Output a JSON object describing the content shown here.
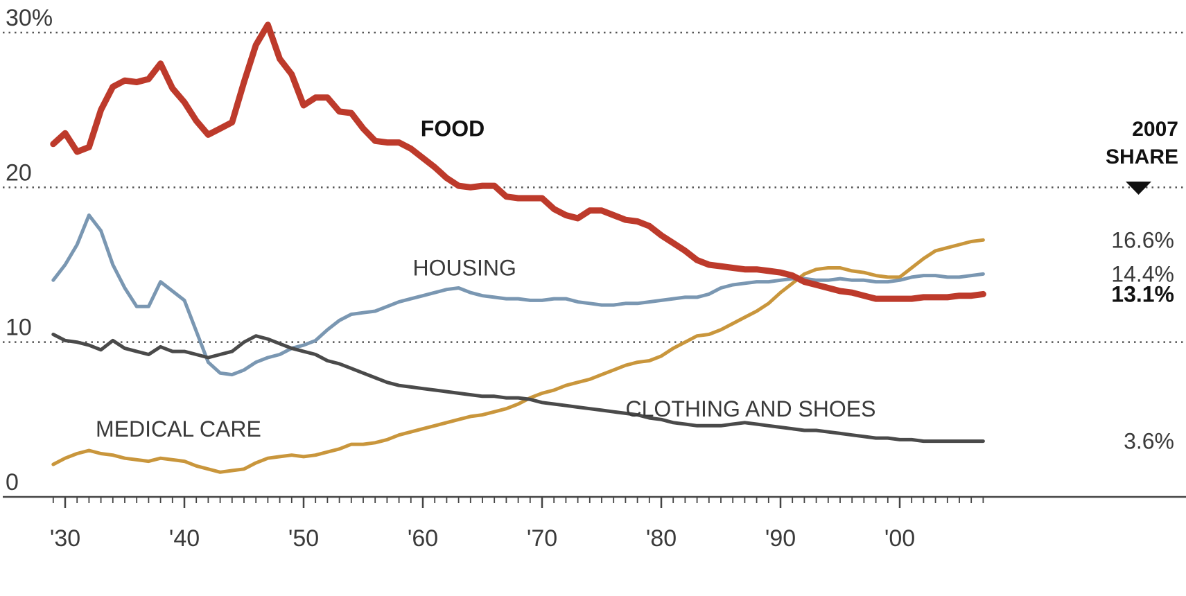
{
  "chart_data": {
    "type": "line",
    "xlim": [
      1928,
      2009
    ],
    "ylim": [
      0,
      30
    ],
    "grid": "dotted horizontal",
    "y_ticks": [
      {
        "value": 30,
        "label": "30%"
      },
      {
        "value": 20,
        "label": "20"
      },
      {
        "value": 10,
        "label": "10"
      },
      {
        "value": 0,
        "label": "0"
      }
    ],
    "x_ticks": [
      {
        "value": 1930,
        "label": "'30"
      },
      {
        "value": 1940,
        "label": "'40"
      },
      {
        "value": 1950,
        "label": "'50"
      },
      {
        "value": 1960,
        "label": "'60"
      },
      {
        "value": 1970,
        "label": "'70"
      },
      {
        "value": 1980,
        "label": "'80"
      },
      {
        "value": 1990,
        "label": "'90"
      },
      {
        "value": 2000,
        "label": "'00"
      }
    ],
    "header": {
      "line1": "2007",
      "line2": "SHARE"
    },
    "series": [
      {
        "name": "MEDICAL CARE",
        "color": "#c9963c",
        "end_label": "16.6%",
        "x": [
          1929,
          1930,
          1931,
          1932,
          1933,
          1934,
          1935,
          1936,
          1937,
          1938,
          1939,
          1940,
          1941,
          1942,
          1943,
          1944,
          1945,
          1946,
          1947,
          1948,
          1949,
          1950,
          1951,
          1952,
          1953,
          1954,
          1955,
          1956,
          1957,
          1958,
          1959,
          1960,
          1961,
          1962,
          1963,
          1964,
          1965,
          1966,
          1967,
          1968,
          1969,
          1970,
          1971,
          1972,
          1973,
          1974,
          1975,
          1976,
          1977,
          1978,
          1979,
          1980,
          1981,
          1982,
          1983,
          1984,
          1985,
          1986,
          1987,
          1988,
          1989,
          1990,
          1991,
          1992,
          1993,
          1994,
          1995,
          1996,
          1997,
          1998,
          1999,
          2000,
          2001,
          2002,
          2003,
          2004,
          2005,
          2006,
          2007
        ],
        "values": [
          2.1,
          2.5,
          2.8,
          3.0,
          2.8,
          2.7,
          2.5,
          2.4,
          2.3,
          2.5,
          2.4,
          2.3,
          2.0,
          1.8,
          1.6,
          1.7,
          1.8,
          2.2,
          2.5,
          2.6,
          2.7,
          2.6,
          2.7,
          2.9,
          3.1,
          3.4,
          3.4,
          3.5,
          3.7,
          4.0,
          4.2,
          4.4,
          4.6,
          4.8,
          5.0,
          5.2,
          5.3,
          5.5,
          5.7,
          6.0,
          6.4,
          6.7,
          6.9,
          7.2,
          7.4,
          7.6,
          7.9,
          8.2,
          8.5,
          8.7,
          8.8,
          9.1,
          9.6,
          10.0,
          10.4,
          10.5,
          10.8,
          11.2,
          11.6,
          12.0,
          12.5,
          13.2,
          13.8,
          14.4,
          14.7,
          14.8,
          14.8,
          14.6,
          14.5,
          14.3,
          14.2,
          14.2,
          14.8,
          15.4,
          15.9,
          16.1,
          16.3,
          16.5,
          16.6
        ]
      },
      {
        "name": "HOUSING",
        "color": "#7a97b2",
        "end_label": "14.4%",
        "x": [
          1929,
          1930,
          1931,
          1932,
          1933,
          1934,
          1935,
          1936,
          1937,
          1938,
          1939,
          1940,
          1941,
          1942,
          1943,
          1944,
          1945,
          1946,
          1947,
          1948,
          1949,
          1950,
          1951,
          1952,
          1953,
          1954,
          1955,
          1956,
          1957,
          1958,
          1959,
          1960,
          1961,
          1962,
          1963,
          1964,
          1965,
          1966,
          1967,
          1968,
          1969,
          1970,
          1971,
          1972,
          1973,
          1974,
          1975,
          1976,
          1977,
          1978,
          1979,
          1980,
          1981,
          1982,
          1983,
          1984,
          1985,
          1986,
          1987,
          1988,
          1989,
          1990,
          1991,
          1992,
          1993,
          1994,
          1995,
          1996,
          1997,
          1998,
          1999,
          2000,
          2001,
          2002,
          2003,
          2004,
          2005,
          2006,
          2007
        ],
        "values": [
          14.0,
          15.0,
          16.3,
          18.2,
          17.2,
          15.0,
          13.5,
          12.3,
          12.3,
          13.9,
          13.3,
          12.7,
          10.7,
          8.7,
          8.0,
          7.9,
          8.2,
          8.7,
          9.0,
          9.2,
          9.6,
          9.8,
          10.1,
          10.8,
          11.4,
          11.8,
          11.9,
          12.0,
          12.3,
          12.6,
          12.8,
          13.0,
          13.2,
          13.4,
          13.5,
          13.2,
          13.0,
          12.9,
          12.8,
          12.8,
          12.7,
          12.7,
          12.8,
          12.8,
          12.6,
          12.5,
          12.4,
          12.4,
          12.5,
          12.5,
          12.6,
          12.7,
          12.8,
          12.9,
          12.9,
          13.1,
          13.5,
          13.7,
          13.8,
          13.9,
          13.9,
          14.0,
          14.1,
          14.1,
          14.0,
          14.0,
          14.1,
          14.0,
          14.0,
          13.9,
          13.9,
          14.0,
          14.2,
          14.3,
          14.3,
          14.2,
          14.2,
          14.3,
          14.4
        ]
      },
      {
        "name": "FOOD",
        "color": "#bd3a2b",
        "end_label": "13.1%",
        "x": [
          1929,
          1930,
          1931,
          1932,
          1933,
          1934,
          1935,
          1936,
          1937,
          1938,
          1939,
          1940,
          1941,
          1942,
          1943,
          1944,
          1945,
          1946,
          1947,
          1948,
          1949,
          1950,
          1951,
          1952,
          1953,
          1954,
          1955,
          1956,
          1957,
          1958,
          1959,
          1960,
          1961,
          1962,
          1963,
          1964,
          1965,
          1966,
          1967,
          1968,
          1969,
          1970,
          1971,
          1972,
          1973,
          1974,
          1975,
          1976,
          1977,
          1978,
          1979,
          1980,
          1981,
          1982,
          1983,
          1984,
          1985,
          1986,
          1987,
          1988,
          1989,
          1990,
          1991,
          1992,
          1993,
          1994,
          1995,
          1996,
          1997,
          1998,
          1999,
          2000,
          2001,
          2002,
          2003,
          2004,
          2005,
          2006,
          2007
        ],
        "values": [
          22.8,
          23.5,
          22.3,
          22.6,
          25.0,
          26.5,
          26.9,
          26.8,
          27.0,
          28.0,
          26.4,
          25.5,
          24.3,
          23.4,
          23.8,
          24.2,
          26.8,
          29.2,
          30.5,
          28.3,
          27.3,
          25.3,
          25.8,
          25.8,
          24.9,
          24.8,
          23.8,
          23.0,
          22.9,
          22.9,
          22.5,
          21.9,
          21.3,
          20.6,
          20.1,
          20.0,
          20.1,
          20.1,
          19.4,
          19.3,
          19.3,
          19.3,
          18.6,
          18.2,
          18.0,
          18.5,
          18.5,
          18.2,
          17.9,
          17.8,
          17.5,
          16.9,
          16.4,
          15.9,
          15.3,
          15.0,
          14.9,
          14.8,
          14.7,
          14.7,
          14.6,
          14.5,
          14.3,
          13.9,
          13.7,
          13.5,
          13.3,
          13.2,
          13.0,
          12.8,
          12.8,
          12.8,
          12.8,
          12.9,
          12.9,
          12.9,
          13.0,
          13.0,
          13.1
        ]
      },
      {
        "name": "CLOTHING AND SHOES",
        "color": "#4a4a4a",
        "end_label": "3.6%",
        "x": [
          1929,
          1930,
          1931,
          1932,
          1933,
          1934,
          1935,
          1936,
          1937,
          1938,
          1939,
          1940,
          1941,
          1942,
          1943,
          1944,
          1945,
          1946,
          1947,
          1948,
          1949,
          1950,
          1951,
          1952,
          1953,
          1954,
          1955,
          1956,
          1957,
          1958,
          1959,
          1960,
          1961,
          1962,
          1963,
          1964,
          1965,
          1966,
          1967,
          1968,
          1969,
          1970,
          1971,
          1972,
          1973,
          1974,
          1975,
          1976,
          1977,
          1978,
          1979,
          1980,
          1981,
          1982,
          1983,
          1984,
          1985,
          1986,
          1987,
          1988,
          1989,
          1990,
          1991,
          1992,
          1993,
          1994,
          1995,
          1996,
          1997,
          1998,
          1999,
          2000,
          2001,
          2002,
          2003,
          2004,
          2005,
          2006,
          2007
        ],
        "values": [
          10.5,
          10.1,
          10.0,
          9.8,
          9.5,
          10.1,
          9.6,
          9.4,
          9.2,
          9.7,
          9.4,
          9.4,
          9.2,
          9.0,
          9.2,
          9.4,
          10.0,
          10.4,
          10.2,
          9.9,
          9.6,
          9.4,
          9.2,
          8.8,
          8.6,
          8.3,
          8.0,
          7.7,
          7.4,
          7.2,
          7.1,
          7.0,
          6.9,
          6.8,
          6.7,
          6.6,
          6.5,
          6.5,
          6.4,
          6.4,
          6.3,
          6.1,
          6.0,
          5.9,
          5.8,
          5.7,
          5.6,
          5.5,
          5.4,
          5.3,
          5.1,
          5.0,
          4.8,
          4.7,
          4.6,
          4.6,
          4.6,
          4.7,
          4.8,
          4.7,
          4.6,
          4.5,
          4.4,
          4.3,
          4.3,
          4.2,
          4.1,
          4.0,
          3.9,
          3.8,
          3.8,
          3.7,
          3.7,
          3.6,
          3.6,
          3.6,
          3.6,
          3.6,
          3.6
        ]
      }
    ],
    "annotations": [
      {
        "text": "FOOD",
        "series": "FOOD",
        "x": 1962.5,
        "y": 23.3,
        "bold": true
      },
      {
        "text": "HOUSING",
        "series": "HOUSING",
        "x": 1963.5,
        "y": 14.3,
        "bold": false
      },
      {
        "text": "MEDICAL CARE",
        "series": "MEDICAL CARE",
        "x": 1939.5,
        "y": 3.9,
        "bold": false
      },
      {
        "text": "CLOTHING AND SHOES",
        "series": "CLOTHING AND SHOES",
        "x": 1987.5,
        "y": 5.2,
        "bold": false
      }
    ]
  }
}
